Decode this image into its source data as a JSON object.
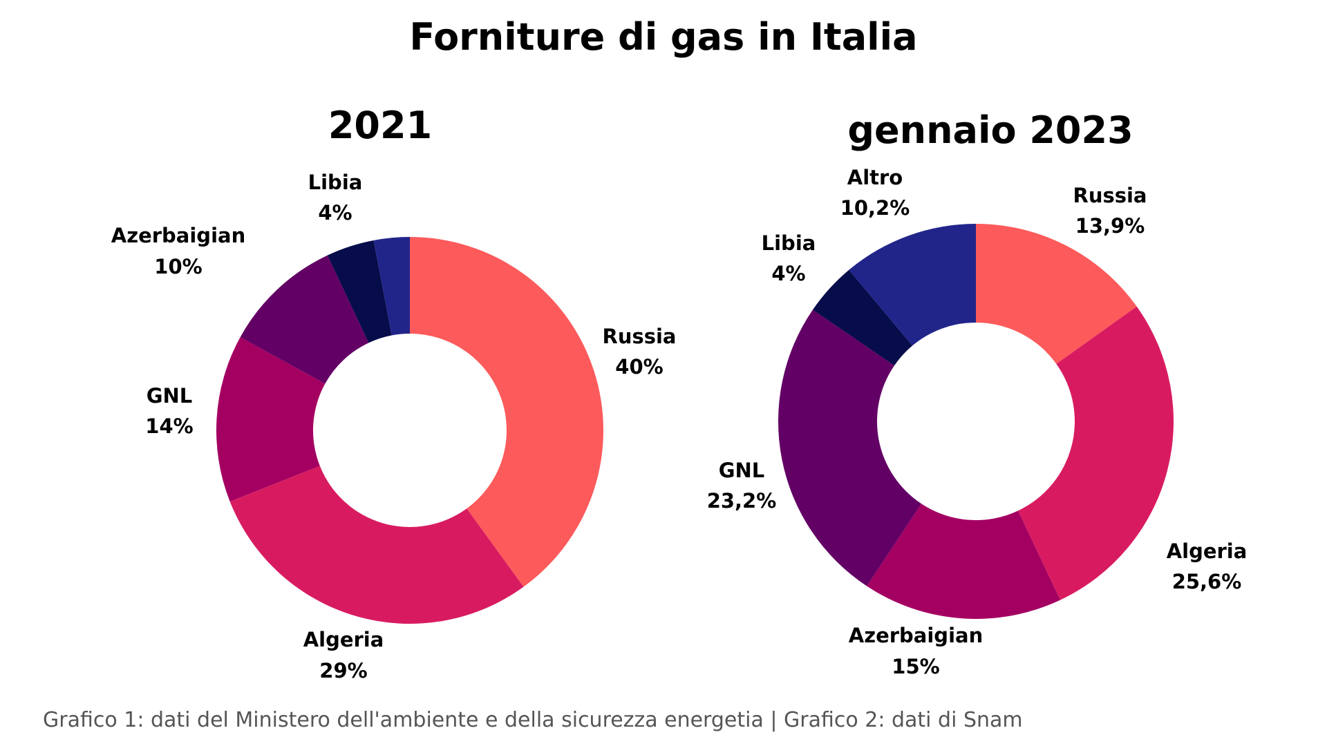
{
  "title": "Forniture di gas in Italia",
  "footnote": "Grafico 1: dati del Ministero dell'ambiente e della sicurezza energetia | Grafico 2: dati di Snam",
  "chart_data": [
    {
      "type": "pie",
      "donut": true,
      "title": "2021",
      "slices": [
        {
          "name": "Russia",
          "value": 40,
          "label": "40%",
          "color": "#fd5a5b"
        },
        {
          "name": "Algeria",
          "value": 29,
          "label": "29%",
          "color": "#d81b60"
        },
        {
          "name": "GNL",
          "value": 14,
          "label": "14%",
          "color": "#a40062"
        },
        {
          "name": "Azerbaigian",
          "value": 10,
          "label": "10%",
          "color": "#630065"
        },
        {
          "name": "Libia",
          "value": 4,
          "label": "4%",
          "color": "#070c4a"
        },
        {
          "name": "",
          "value": 3,
          "label": "",
          "color": "#21258a"
        }
      ]
    },
    {
      "type": "pie",
      "donut": true,
      "title": "gennaio 2023",
      "slices": [
        {
          "name": "Russia",
          "value": 13.9,
          "label": "13,9%",
          "color": "#fd5a5b"
        },
        {
          "name": "Algeria",
          "value": 25.6,
          "label": "25,6%",
          "color": "#d81b60"
        },
        {
          "name": "Azerbaigian",
          "value": 15,
          "label": "15%",
          "color": "#a40062"
        },
        {
          "name": "GNL",
          "value": 23.2,
          "label": "23,2%",
          "color": "#630065"
        },
        {
          "name": "Libia",
          "value": 4,
          "label": "4%",
          "color": "#070c4a"
        },
        {
          "name": "Altro",
          "value": 10.2,
          "label": "10,2%",
          "color": "#21258a"
        }
      ]
    }
  ]
}
